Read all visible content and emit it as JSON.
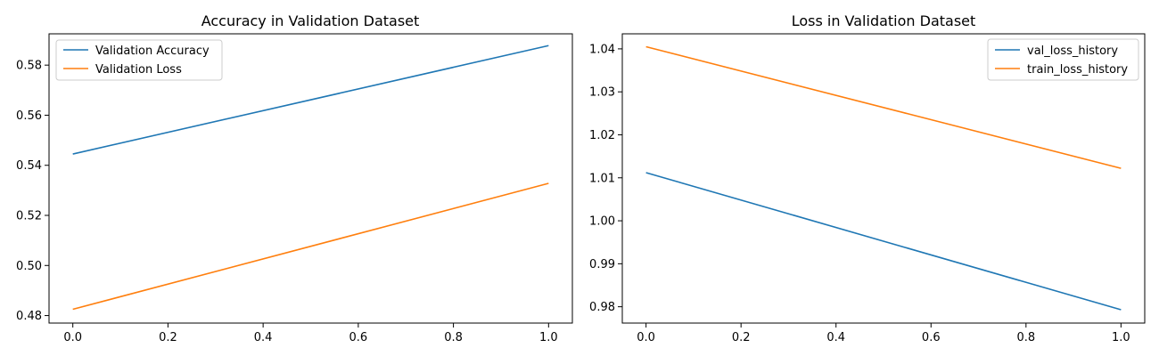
{
  "chart_data": [
    {
      "type": "line",
      "title": "Accuracy in Validation Dataset",
      "xlabel": "",
      "ylabel": "",
      "xlim": [
        -0.05,
        1.05
      ],
      "ylim": [
        0.477,
        0.5925
      ],
      "xticks": [
        0.0,
        0.2,
        0.4,
        0.6,
        0.8,
        1.0
      ],
      "xtick_labels": [
        "0.0",
        "0.2",
        "0.4",
        "0.6",
        "0.8",
        "1.0"
      ],
      "yticks": [
        0.48,
        0.5,
        0.52,
        0.54,
        0.56,
        0.58
      ],
      "ytick_labels": [
        "0.48",
        "0.50",
        "0.52",
        "0.54",
        "0.56",
        "0.58"
      ],
      "grid": false,
      "legend": "top-left",
      "series": [
        {
          "name": "Validation Accuracy",
          "color": "#1f77b4",
          "x": [
            0,
            1
          ],
          "y": [
            0.5445,
            0.5878
          ]
        },
        {
          "name": "Validation Loss",
          "color": "#ff7f0e",
          "x": [
            0,
            1
          ],
          "y": [
            0.4825,
            0.5328
          ]
        }
      ]
    },
    {
      "type": "line",
      "title": "Loss in Validation Dataset",
      "xlabel": "",
      "ylabel": "",
      "xlim": [
        -0.05,
        1.05
      ],
      "ylim": [
        0.9762,
        1.0435
      ],
      "xticks": [
        0.0,
        0.2,
        0.4,
        0.6,
        0.8,
        1.0
      ],
      "xtick_labels": [
        "0.0",
        "0.2",
        "0.4",
        "0.6",
        "0.8",
        "1.0"
      ],
      "yticks": [
        0.98,
        0.99,
        1.0,
        1.01,
        1.02,
        1.03,
        1.04
      ],
      "ytick_labels": [
        "0.98",
        "0.99",
        "1.00",
        "1.01",
        "1.02",
        "1.03",
        "1.04"
      ],
      "grid": false,
      "legend": "top-right",
      "series": [
        {
          "name": "val_loss_history",
          "color": "#1f77b4",
          "x": [
            0,
            1
          ],
          "y": [
            1.0112,
            0.9793
          ]
        },
        {
          "name": "train_loss_history",
          "color": "#ff7f0e",
          "x": [
            0,
            1
          ],
          "y": [
            1.0405,
            1.0122
          ]
        }
      ]
    }
  ]
}
